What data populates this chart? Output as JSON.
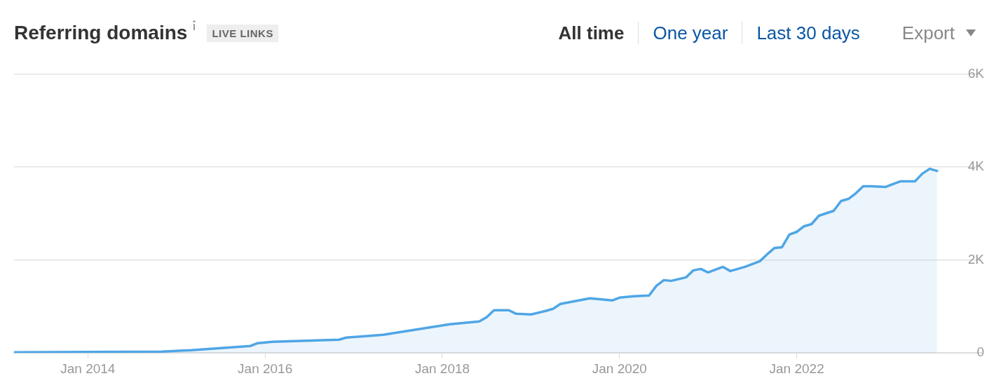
{
  "chart_data": {
    "type": "area",
    "title": "Referring domains",
    "annotations": [
      "LIVE LINKS",
      "All time",
      "One year",
      "Last 30 days",
      "Export"
    ],
    "x": [
      "2013-03",
      "2014-11",
      "2015-03",
      "2015-07",
      "2015-11",
      "2015-12",
      "2016-02",
      "2016-11",
      "2016-12",
      "2017-05",
      "2017-08",
      "2017-11",
      "2018-02",
      "2018-06",
      "2018-07",
      "2018-08",
      "2018-10",
      "2018-11",
      "2019-01",
      "2019-03",
      "2019-04",
      "2019-05",
      "2019-07",
      "2019-09",
      "2019-12",
      "2020-01",
      "2020-03",
      "2020-05",
      "2020-06",
      "2020-07",
      "2020-08",
      "2020-10",
      "2020-11",
      "2020-12",
      "2021-01",
      "2021-03",
      "2021-04",
      "2021-06",
      "2021-08",
      "2021-09",
      "2021-10",
      "2021-11",
      "2021-12",
      "2022-01",
      "2022-02",
      "2022-03",
      "2022-04",
      "2022-06",
      "2022-07",
      "2022-08",
      "2022-09",
      "2022-10",
      "2022-11",
      "2023-01",
      "2023-03",
      "2023-05",
      "2023-06",
      "2023-07",
      "2023-08"
    ],
    "series": [
      {
        "color": "#4fa6e5",
        "values": [
          15,
          30,
          60,
          105,
          150,
          211,
          241,
          286,
          331,
          392,
          467,
          542,
          617,
          678,
          768,
          919,
          919,
          843,
          828,
          904,
          949,
          1054,
          1115,
          1175,
          1130,
          1190,
          1220,
          1235,
          1446,
          1566,
          1551,
          1626,
          1777,
          1807,
          1732,
          1852,
          1762,
          1852,
          1973,
          2123,
          2259,
          2274,
          2545,
          2605,
          2726,
          2771,
          2952,
          3057,
          3268,
          3313,
          3434,
          3584,
          3584,
          3569,
          3690,
          3690,
          3855,
          3961,
          3915
        ]
      }
    ],
    "xlim": [
      "2013-03",
      "2024-02"
    ],
    "xticks": [
      {
        "value": "2014-01",
        "label": "Jan 2014"
      },
      {
        "value": "2016-01",
        "label": "Jan 2016"
      },
      {
        "value": "2018-01",
        "label": "Jan 2018"
      },
      {
        "value": "2020-01",
        "label": "Jan 2020"
      },
      {
        "value": "2022-01",
        "label": "Jan 2022"
      }
    ],
    "ylim": [
      0,
      6000
    ],
    "yticks": [
      0,
      {
        "value": 2000,
        "label": "2K"
      },
      {
        "value": 4000,
        "label": "4K"
      },
      {
        "value": 6000,
        "label": "6K"
      }
    ],
    "grid": "y",
    "legend": false,
    "marker": "none",
    "line_style": "solid"
  }
}
